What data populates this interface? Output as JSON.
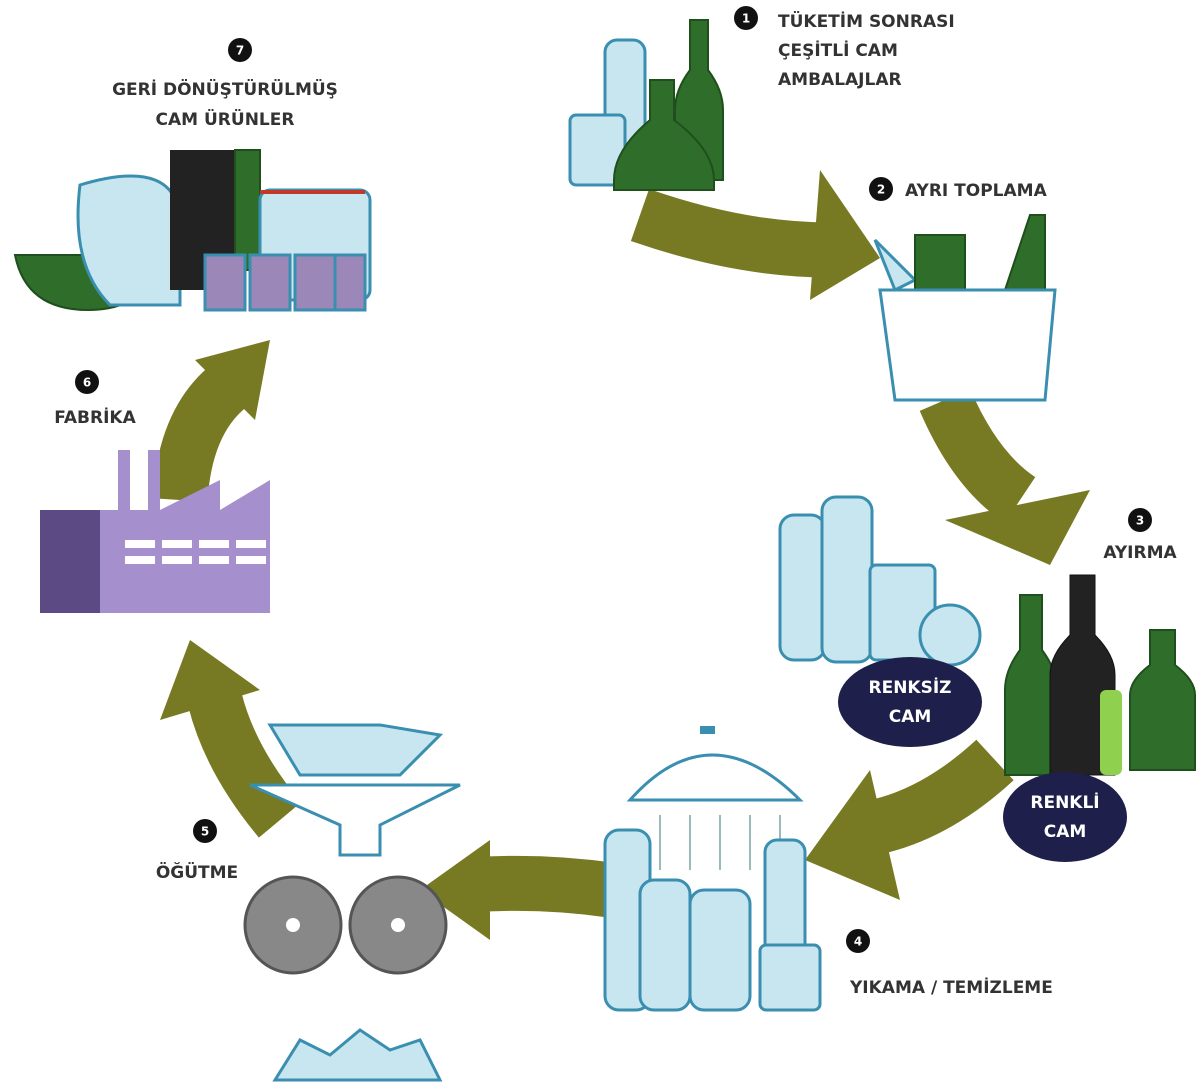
{
  "steps": [
    {
      "number": 1,
      "label": [
        "TÜKETİM SONRASI",
        "ÇEŞİTLİ CAM",
        "AMBALAJLAR"
      ]
    },
    {
      "number": 2,
      "label": [
        "AYRI TOPLAMA"
      ]
    },
    {
      "number": 3,
      "label": [
        "AYIRMA"
      ]
    },
    {
      "number": 4,
      "label": [
        "YIKAMA / TEMİZLEME"
      ]
    },
    {
      "number": 5,
      "label": [
        "ÖĞÜTME"
      ]
    },
    {
      "number": 6,
      "label": [
        "FABRİKA"
      ]
    },
    {
      "number": 7,
      "label": [
        "GERİ DÖNÜŞTÜRÜLMÜŞ",
        "CAM ÜRÜNLER"
      ]
    }
  ],
  "sort_groups": [
    [
      "RENKSİZ",
      "CAM"
    ],
    [
      "RENKLİ",
      "CAM"
    ]
  ]
}
